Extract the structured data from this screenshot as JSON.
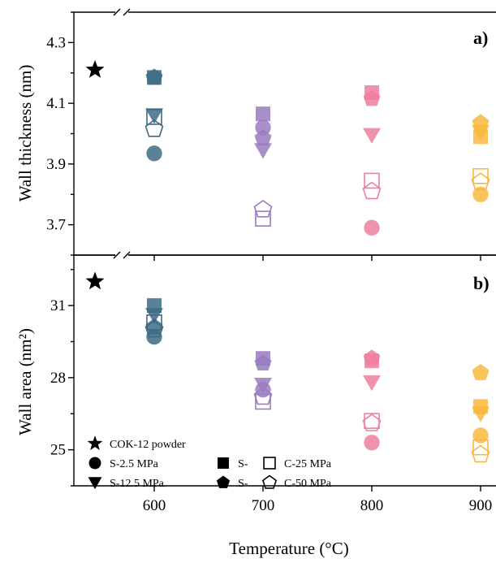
{
  "chart_data": {
    "type": "scatter",
    "xlabel": "Temperature (°C)",
    "x_ticks": [
      600,
      700,
      800,
      900
    ],
    "xlim": [
      545,
      905
    ],
    "reference": {
      "name": "COK-12 powder",
      "x": 545
    },
    "colors": {
      "600": "#3d6b86",
      "700": "#9a7bbf",
      "800": "#ef7f9f",
      "900": "#f9b93e"
    },
    "legend": [
      {
        "label": "COK-12 powder",
        "marker": "star"
      },
      {
        "label": "S-2.5 MPa",
        "marker": "circle"
      },
      {
        "label": "S-12.5 MPa",
        "marker": "triangle-down"
      },
      {
        "label": "S-",
        "marker": "square"
      },
      {
        "label": "S-",
        "marker": "pentagon"
      },
      {
        "label": "C-25 MPa",
        "marker": "square-open"
      },
      {
        "label": "C-50 MPa",
        "marker": "pentagon-open"
      }
    ],
    "panels": [
      {
        "label": "a)",
        "ylabel": "Wall thickness (nm)",
        "ylim": [
          3.6,
          4.4
        ],
        "yticks": [
          "3.7",
          "3.9",
          "4.1",
          "4.3"
        ],
        "reference_value": 4.21,
        "points": [
          {
            "x": 600,
            "marker": "circle",
            "y": 3.935
          },
          {
            "x": 600,
            "marker": "triangle-down",
            "y": 4.06
          },
          {
            "x": 600,
            "marker": "square",
            "y": 4.185
          },
          {
            "x": 600,
            "marker": "pentagon",
            "y": 4.185
          },
          {
            "x": 600,
            "marker": "square-open",
            "y": 4.055
          },
          {
            "x": 600,
            "marker": "pentagon-open",
            "y": 4.015
          },
          {
            "x": 700,
            "marker": "circle",
            "y": 4.02
          },
          {
            "x": 700,
            "marker": "triangle-down",
            "y": 3.945
          },
          {
            "x": 700,
            "marker": "square",
            "y": 4.065
          },
          {
            "x": 700,
            "marker": "pentagon",
            "y": 3.985
          },
          {
            "x": 700,
            "marker": "square-open",
            "y": 3.72
          },
          {
            "x": 700,
            "marker": "pentagon-open",
            "y": 3.75
          },
          {
            "x": 800,
            "marker": "circle",
            "y": 3.69
          },
          {
            "x": 800,
            "marker": "triangle-down",
            "y": 3.995
          },
          {
            "x": 800,
            "marker": "square",
            "y": 4.135
          },
          {
            "x": 800,
            "marker": "pentagon",
            "y": 4.115
          },
          {
            "x": 800,
            "marker": "square-open",
            "y": 3.845
          },
          {
            "x": 800,
            "marker": "pentagon-open",
            "y": 3.81
          },
          {
            "x": 900,
            "marker": "circle",
            "y": 3.8
          },
          {
            "x": 900,
            "marker": "triangle-down",
            "y": 4.005
          },
          {
            "x": 900,
            "marker": "square",
            "y": 3.99
          },
          {
            "x": 900,
            "marker": "pentagon",
            "y": 4.035
          },
          {
            "x": 900,
            "marker": "square-open",
            "y": 3.86
          },
          {
            "x": 900,
            "marker": "pentagon-open",
            "y": 3.84
          }
        ]
      },
      {
        "label": "b)",
        "ylabel": "Wall area (nm²)",
        "ylim": [
          23.5,
          33.1
        ],
        "yticks": [
          "25",
          "28",
          "31"
        ],
        "reference_value": 32.0,
        "points": [
          {
            "x": 600,
            "marker": "circle",
            "y": 29.7
          },
          {
            "x": 600,
            "marker": "triangle-down",
            "y": 30.6
          },
          {
            "x": 600,
            "marker": "square",
            "y": 31.0
          },
          {
            "x": 600,
            "marker": "pentagon",
            "y": 30.1
          },
          {
            "x": 600,
            "marker": "square-open",
            "y": 30.3
          },
          {
            "x": 600,
            "marker": "pentagon-open",
            "y": 30.0
          },
          {
            "x": 700,
            "marker": "circle",
            "y": 27.5
          },
          {
            "x": 700,
            "marker": "triangle-down",
            "y": 27.7
          },
          {
            "x": 700,
            "marker": "square",
            "y": 28.8
          },
          {
            "x": 700,
            "marker": "pentagon",
            "y": 28.6
          },
          {
            "x": 700,
            "marker": "square-open",
            "y": 27.0
          },
          {
            "x": 700,
            "marker": "pentagon-open",
            "y": 27.2
          },
          {
            "x": 800,
            "marker": "circle",
            "y": 25.3
          },
          {
            "x": 800,
            "marker": "triangle-down",
            "y": 27.8
          },
          {
            "x": 800,
            "marker": "square",
            "y": 28.7
          },
          {
            "x": 800,
            "marker": "pentagon",
            "y": 28.8
          },
          {
            "x": 800,
            "marker": "square-open",
            "y": 26.2
          },
          {
            "x": 800,
            "marker": "pentagon-open",
            "y": 26.1
          },
          {
            "x": 900,
            "marker": "circle",
            "y": 25.6
          },
          {
            "x": 900,
            "marker": "triangle-down",
            "y": 26.5
          },
          {
            "x": 900,
            "marker": "square",
            "y": 26.8
          },
          {
            "x": 900,
            "marker": "pentagon",
            "y": 28.2
          },
          {
            "x": 900,
            "marker": "square-open",
            "y": 25.1
          },
          {
            "x": 900,
            "marker": "pentagon-open",
            "y": 24.8
          }
        ]
      }
    ]
  }
}
